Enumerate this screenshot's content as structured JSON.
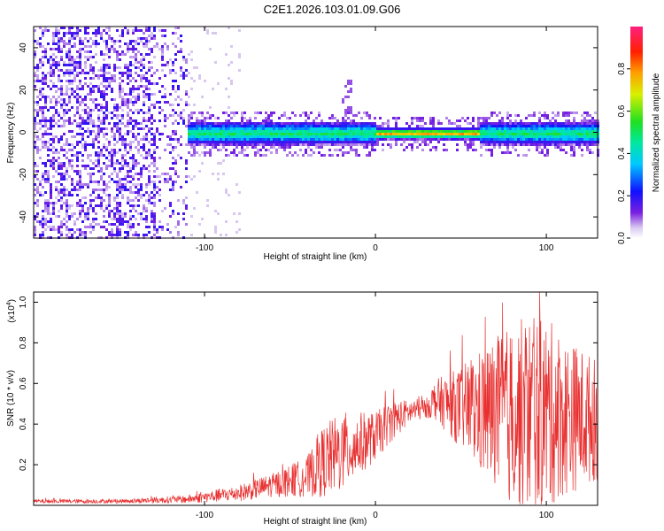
{
  "page": {
    "title": "C2E1.2026.103.01.09.G06"
  },
  "chart_data": [
    {
      "type": "heatmap",
      "title": "C2E1.2026.103.01.09.G06",
      "xlabel": "Height of straight line (km)",
      "ylabel": "Frequency (Hz)",
      "xlim": [
        -200,
        130
      ],
      "ylim": [
        -50,
        50
      ],
      "xticks": [
        -100,
        0,
        100
      ],
      "xtick_labels": [
        "-100",
        "0",
        "100"
      ],
      "yticks": [
        -40,
        -20,
        0,
        20,
        40
      ],
      "ytick_labels": [
        "-40",
        "-20",
        "0",
        "20",
        "40"
      ],
      "ridge_frequency_hz": 0,
      "noise_region_km": [
        -200,
        -110
      ],
      "colorbar": {
        "label": "Normalized spectral amplitude",
        "range": [
          0,
          1
        ],
        "ticks": [
          0.0,
          0.2,
          0.4,
          0.6,
          0.8
        ],
        "tick_labels": [
          "0.0",
          "0.2",
          "0.4",
          "0.6",
          "0.8"
        ]
      }
    },
    {
      "type": "line",
      "xlabel": "Height of straight line (km)",
      "ylabel": "SNR (10 * v/v)",
      "multiplier_label": "(x10",
      "multiplier_exp": "4",
      "multiplier_close": ")",
      "xlim": [
        -200,
        130
      ],
      "ylim": [
        0,
        1.05
      ],
      "xticks": [
        -100,
        0,
        100
      ],
      "xtick_labels": [
        "-100",
        "0",
        "100"
      ],
      "yticks": [
        0.2,
        0.4,
        0.6,
        0.8,
        1.0
      ],
      "ytick_labels": [
        "0.2",
        "0.4",
        "0.6",
        "0.8",
        "1.0"
      ],
      "color": "#e83030",
      "envelope": {
        "x": [
          -200,
          -150,
          -110,
          -80,
          -60,
          -40,
          -30,
          -20,
          -10,
          0,
          10,
          20,
          30,
          35,
          50,
          60,
          70,
          80,
          90,
          100,
          110,
          120,
          130
        ],
        "mean": [
          0.02,
          0.02,
          0.03,
          0.06,
          0.1,
          0.14,
          0.22,
          0.26,
          0.3,
          0.34,
          0.42,
          0.46,
          0.48,
          0.52,
          0.48,
          0.46,
          0.45,
          0.44,
          0.45,
          0.45,
          0.44,
          0.43,
          0.42
        ],
        "amp": [
          0.01,
          0.01,
          0.02,
          0.04,
          0.06,
          0.1,
          0.18,
          0.2,
          0.16,
          0.12,
          0.1,
          0.06,
          0.05,
          0.1,
          0.2,
          0.3,
          0.38,
          0.45,
          0.5,
          0.48,
          0.4,
          0.35,
          0.3
        ]
      }
    }
  ]
}
